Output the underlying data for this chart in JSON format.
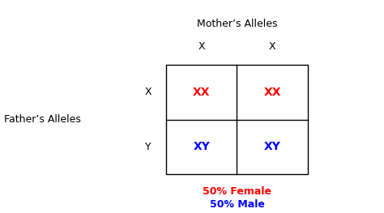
{
  "title": "Mother’s Alleles",
  "fathers_label": "Father’s Alleles",
  "mother_alleles": [
    "X",
    "X"
  ],
  "father_alleles": [
    "X",
    "Y"
  ],
  "cell_contents": [
    [
      "XX",
      "XX"
    ],
    [
      "XY",
      "XY"
    ]
  ],
  "cell_colors": [
    [
      "red",
      "red"
    ],
    [
      "blue",
      "blue"
    ]
  ],
  "female_label": "50% Female",
  "male_label": "50% Male",
  "female_color": "red",
  "male_color": "blue",
  "bg_color": "white",
  "fig_width": 4.74,
  "fig_height": 2.63,
  "dpi": 100,
  "title_fontsize": 9,
  "label_fontsize": 9,
  "allele_fontsize": 9,
  "cell_fontsize": 10,
  "stat_fontsize": 9
}
